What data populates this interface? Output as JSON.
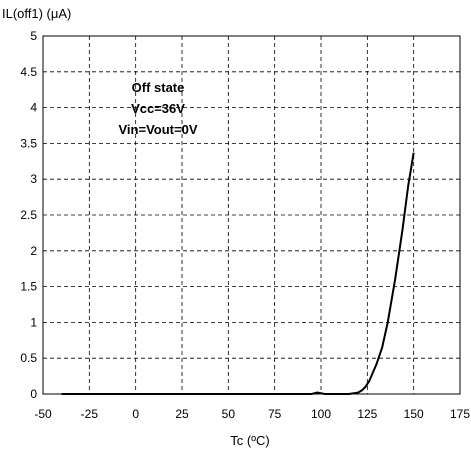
{
  "chart_data": {
    "type": "line",
    "title": "",
    "ylabel": "IL(off1) (μA)",
    "xlabel": "Tc (ºC)",
    "xlim": [
      -50,
      175
    ],
    "ylim": [
      0,
      5
    ],
    "x_ticks": [
      -50,
      -25,
      0,
      25,
      50,
      75,
      100,
      125,
      150,
      175
    ],
    "y_ticks": [
      0,
      0.5,
      1,
      1.5,
      2,
      2.5,
      3,
      3.5,
      4,
      4.5,
      5
    ],
    "x_tick_labels": [
      "-50",
      "-25",
      "0",
      "25",
      "50",
      "75",
      "100",
      "125",
      "150",
      "175"
    ],
    "y_tick_labels": [
      "0",
      "0.5",
      "1",
      "1.5",
      "2",
      "2.5",
      "3",
      "3.5",
      "4",
      "4.5",
      "5"
    ],
    "grid": true,
    "annotation_lines": [
      "Off state",
      "Vcc=36V",
      "Vin=Vout=0V"
    ],
    "series": [
      {
        "x": [
          -40,
          0,
          50,
          95,
          98,
          102,
          115,
          120,
          122,
          124,
          126,
          128,
          130,
          133,
          136,
          140,
          144,
          147,
          150
        ],
        "y": [
          0.0,
          0.0,
          0.0,
          0.0,
          0.02,
          0.0,
          0.0,
          0.02,
          0.05,
          0.1,
          0.18,
          0.3,
          0.42,
          0.65,
          1.0,
          1.6,
          2.3,
          2.9,
          3.37
        ]
      }
    ]
  }
}
